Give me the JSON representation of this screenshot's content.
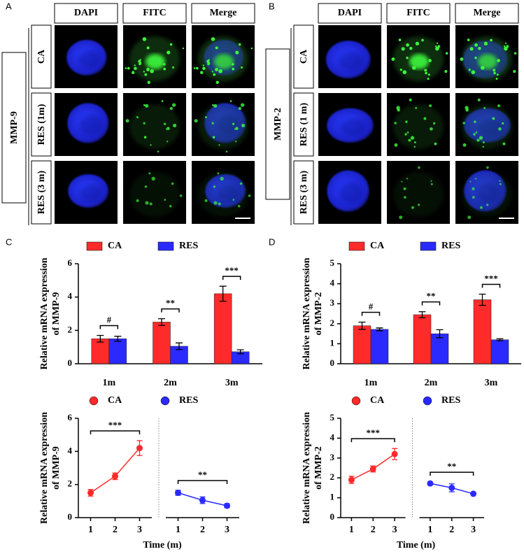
{
  "panel_labels": [
    "A",
    "B",
    "C",
    "D"
  ],
  "micrographs": [
    {
      "group": "MMP-9",
      "columns": [
        "DAPI",
        "FITC",
        "Merge"
      ],
      "rows": [
        "CA",
        "RES (1m)",
        "RES (3 m)"
      ]
    },
    {
      "group": "MMP-2",
      "columns": [
        "DAPI",
        "FITC",
        "Merge"
      ],
      "rows": [
        "CA",
        "RES (1 m)",
        "RES (3 m)"
      ]
    }
  ],
  "chart_data": [
    {
      "type": "bar",
      "ylabel": [
        "Relative mRNA expression",
        "of MMP-9"
      ],
      "categories": [
        "1m",
        "2m",
        "3m"
      ],
      "significance": [
        "#",
        "**",
        "***"
      ],
      "series": [
        {
          "name": "CA",
          "color": "#ff2a2a",
          "values": [
            1.5,
            2.5,
            4.2
          ],
          "errors": [
            0.2,
            0.2,
            0.45
          ]
        },
        {
          "name": "RES",
          "color": "#2a2aff",
          "values": [
            1.5,
            1.05,
            0.72
          ],
          "errors": [
            0.15,
            0.2,
            0.12
          ]
        }
      ],
      "ylim": [
        0,
        6
      ],
      "yticks": [
        0,
        2,
        4,
        6
      ]
    },
    {
      "type": "line",
      "ylabel": [
        "Relative mRNA expression",
        "of MMP-9"
      ],
      "xlabel": "Time (m)",
      "x": [
        1,
        2,
        3
      ],
      "xlim": [
        0.5,
        3.5
      ],
      "xticks": [
        1,
        2,
        3
      ],
      "series": [
        {
          "name": "CA",
          "color": "#ff2a2a",
          "values": [
            1.5,
            2.5,
            4.2
          ],
          "errors": [
            0.2,
            0.2,
            0.45
          ],
          "significance": "***"
        },
        {
          "name": "RES",
          "color": "#2a2aff",
          "values": [
            1.5,
            1.05,
            0.72
          ],
          "errors": [
            0.15,
            0.2,
            0.12
          ],
          "significance": "**"
        }
      ],
      "ylim": [
        0,
        6
      ],
      "yticks": [
        0,
        2,
        4,
        6
      ]
    },
    {
      "type": "bar",
      "ylabel": [
        "Relative mRNA expression",
        "of MMP-2"
      ],
      "categories": [
        "1m",
        "2m",
        "3m"
      ],
      "significance": [
        "#",
        "**",
        "***"
      ],
      "series": [
        {
          "name": "CA",
          "color": "#ff2a2a",
          "values": [
            1.9,
            2.45,
            3.2
          ],
          "errors": [
            0.18,
            0.15,
            0.28
          ]
        },
        {
          "name": "RES",
          "color": "#2a2aff",
          "values": [
            1.72,
            1.5,
            1.2
          ],
          "errors": [
            0.07,
            0.2,
            0.05
          ]
        }
      ],
      "ylim": [
        0,
        5
      ],
      "yticks": [
        0,
        1,
        2,
        3,
        4,
        5
      ]
    },
    {
      "type": "line",
      "ylabel": [
        "Relative mRNA expression",
        "of MMP-2"
      ],
      "xlabel": "Time (m)",
      "x": [
        1,
        2,
        3
      ],
      "xlim": [
        0.5,
        3.5
      ],
      "xticks": [
        1,
        2,
        3
      ],
      "series": [
        {
          "name": "CA",
          "color": "#ff2a2a",
          "values": [
            1.9,
            2.45,
            3.2
          ],
          "errors": [
            0.18,
            0.15,
            0.28
          ],
          "significance": "***"
        },
        {
          "name": "RES",
          "color": "#2a2aff",
          "values": [
            1.72,
            1.5,
            1.2
          ],
          "errors": [
            0.07,
            0.2,
            0.05
          ],
          "significance": "**"
        }
      ],
      "ylim": [
        0,
        5
      ],
      "yticks": [
        0,
        1,
        2,
        3,
        4,
        5
      ]
    }
  ]
}
